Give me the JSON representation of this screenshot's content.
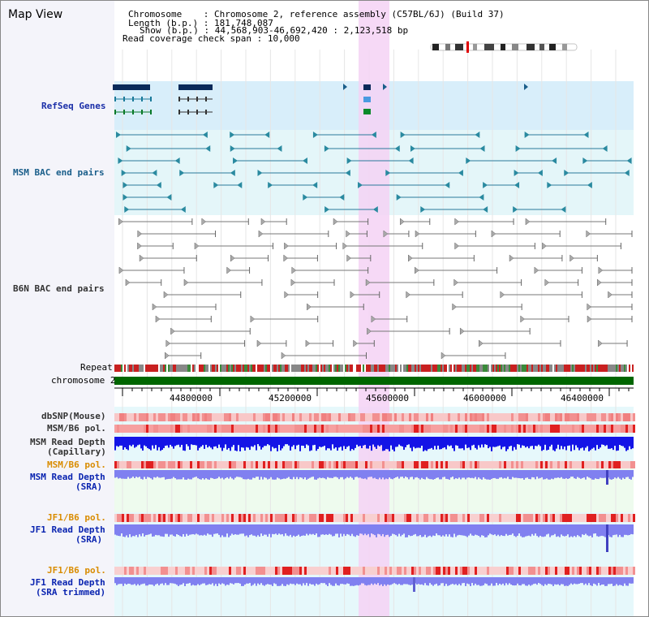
{
  "app": {
    "title": "Map View"
  },
  "info": {
    "chromosome_key": "Chromosome",
    "chromosome_value": "Chromosome 2, reference assembly (C57BL/6J) (Build 37)",
    "length_key": "Length (b.p.)",
    "length_value": "181,748,087",
    "show_key": "Show (b.p.)",
    "show_value": "44,568,903-46,692,420 : 2,123,518 bp",
    "coverage_key": "Read coverage check span",
    "coverage_value": "10,000"
  },
  "tracks": {
    "refseq": "RefSeq Genes",
    "msm_bac": "MSM BAC end pairs",
    "b6n_bac": "B6N BAC end pairs",
    "repeat": "Repeat",
    "chromosome": "chromosome 2",
    "dbsnp": "dbSNP(Mouse)",
    "msm_pol1": "MSM/B6 pol.",
    "msm_depth_cap_1": "MSM Read Depth",
    "msm_depth_cap_2": "(Capillary)",
    "msm_pol2": "MSM/B6 pol.",
    "msm_depth_sra_1": "MSM Read Depth",
    "msm_depth_sra_2": "(SRA)",
    "jf1_pol1": "JF1/B6 pol.",
    "jf1_depth_sra_1": "JF1 Read Depth",
    "jf1_depth_sra_2": "(SRA)",
    "jf1_pol2": "JF1/B6 pol.",
    "jf1_depth_trim_1": "JF1 Read Depth",
    "jf1_depth_trim_2": "(SRA trimmed)"
  },
  "axis": {
    "ticks": [
      "44800000",
      "45200000",
      "45600000",
      "46000000",
      "46400000"
    ]
  },
  "colors": {
    "highlight": "#f5d2f5",
    "refseq_bg": "#d8eefa",
    "chromosome_bar": "#006600",
    "snp_low": "#f8c8c8",
    "snp_high": "#e02020",
    "depth_blue": "#1414e6",
    "depth_light": "#8080f0"
  }
}
